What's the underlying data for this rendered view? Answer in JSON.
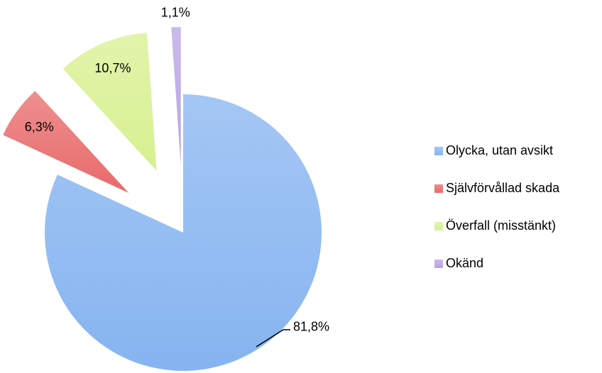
{
  "chart_data": {
    "type": "pie",
    "categories": [
      "Olycka, utan avsikt",
      "Självförvållad skada",
      "Överfall (misstänkt)",
      "Okänd"
    ],
    "values": [
      81.8,
      6.3,
      10.7,
      1.1
    ],
    "value_labels": [
      "81,8%",
      "6,3%",
      "10,7%",
      "1,1%"
    ],
    "colors": [
      "#86b4f0",
      "#e86a6a",
      "#d8f090",
      "#b9a3e3"
    ],
    "legend": "right"
  }
}
